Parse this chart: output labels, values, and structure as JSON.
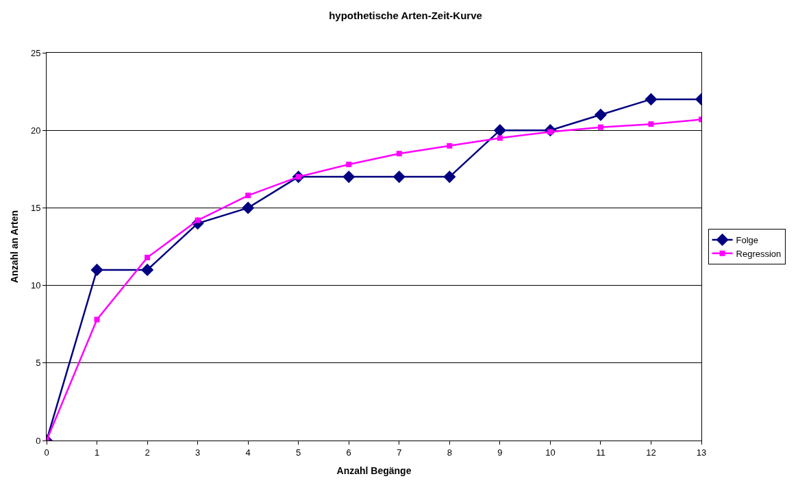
{
  "chart_data": {
    "type": "line",
    "title": "hypothetische Arten-Zeit-Kurve",
    "xlabel": "Anzahl Begänge",
    "ylabel": "Anzahl an Arten",
    "x": [
      0,
      1,
      2,
      3,
      4,
      5,
      6,
      7,
      8,
      9,
      10,
      11,
      12,
      13
    ],
    "series": [
      {
        "name": "Folge",
        "color": "#000080",
        "marker": "diamond",
        "values": [
          0,
          11,
          11,
          14,
          15,
          17,
          17,
          17,
          17,
          20,
          20,
          21,
          22,
          22
        ]
      },
      {
        "name": "Regression",
        "color": "#ff00ff",
        "marker": "square",
        "values": [
          0,
          7.8,
          11.8,
          14.2,
          15.8,
          17.0,
          17.8,
          18.5,
          19.0,
          19.5,
          19.9,
          20.2,
          20.4,
          20.7
        ]
      }
    ],
    "xlim": [
      0,
      13
    ],
    "xticks": [
      0,
      1,
      2,
      3,
      4,
      5,
      6,
      7,
      8,
      9,
      10,
      11,
      12,
      13
    ],
    "ylim": [
      0,
      25
    ],
    "yticks": [
      0,
      5,
      10,
      15,
      20,
      25
    ],
    "grid": "y",
    "legend": "right",
    "line_style": "solid"
  }
}
